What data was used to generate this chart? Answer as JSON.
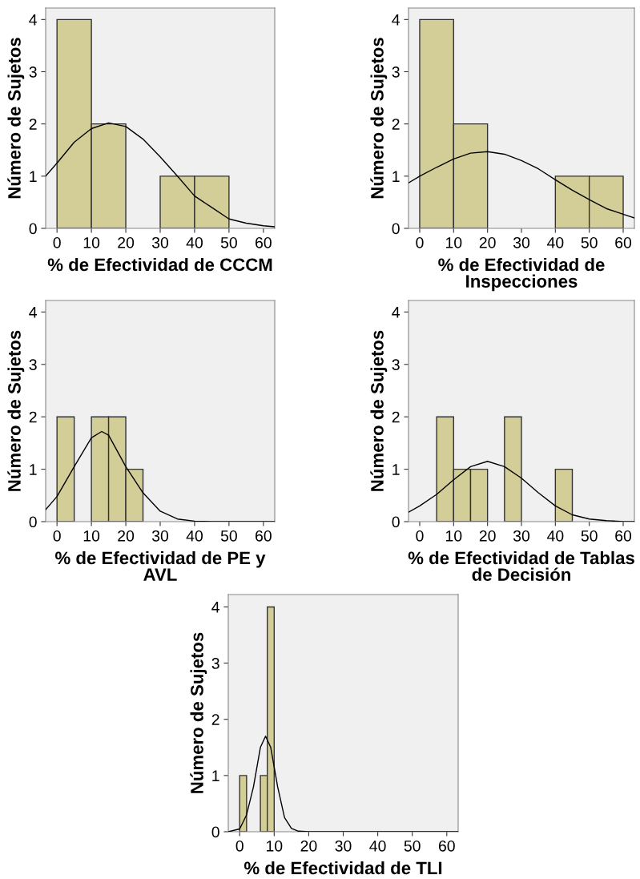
{
  "chart_data": [
    {
      "type": "histogram",
      "xlabel": "% de Efectividad de CCCM",
      "ylabel": "Número de Sujetos",
      "xlim": [
        -3.3,
        63.3
      ],
      "ylim": [
        0,
        4.22
      ],
      "xticks": [
        0,
        10,
        20,
        30,
        40,
        50,
        60
      ],
      "yticks": [
        0,
        1,
        2,
        3,
        4
      ],
      "grid": false,
      "series": [
        {
          "type": "histogram",
          "color": "#d3ce98",
          "bins": [
            0,
            10,
            20,
            30,
            40,
            50
          ],
          "values": [
            4,
            2,
            0,
            1,
            1
          ]
        },
        {
          "type": "line",
          "color": "#000000",
          "x": [
            -3.3,
            0,
            5,
            10,
            15,
            20,
            25,
            30,
            35,
            40,
            45,
            50,
            55,
            60,
            63.3
          ],
          "values": [
            1.0,
            1.25,
            1.65,
            1.91,
            2.02,
            1.95,
            1.71,
            1.37,
            1.0,
            0.62,
            0.4,
            0.18,
            0.1,
            0.05,
            0.03
          ]
        }
      ]
    },
    {
      "type": "histogram",
      "xlabel": "% de Efectividad de\nInspecciones",
      "ylabel": "Número de Sujetos",
      "xlim": [
        -3.3,
        63.3
      ],
      "ylim": [
        0,
        4.22
      ],
      "xticks": [
        0,
        10,
        20,
        30,
        40,
        50,
        60
      ],
      "yticks": [
        0,
        1,
        2,
        3,
        4
      ],
      "grid": false,
      "series": [
        {
          "type": "histogram",
          "color": "#d3ce98",
          "bins": [
            0,
            10,
            20,
            30,
            40,
            50,
            60
          ],
          "values": [
            4,
            2,
            0,
            0,
            1,
            1
          ]
        },
        {
          "type": "line",
          "color": "#000000",
          "x": [
            -3.3,
            0,
            5,
            10,
            15,
            20,
            25,
            30,
            35,
            40,
            45,
            50,
            55,
            60,
            63.3
          ],
          "values": [
            0.87,
            1.0,
            1.17,
            1.33,
            1.44,
            1.47,
            1.42,
            1.3,
            1.14,
            0.93,
            0.73,
            0.55,
            0.38,
            0.27,
            0.2
          ]
        }
      ]
    },
    {
      "type": "histogram",
      "xlabel": "% de Efectividad de PE y\nAVL",
      "ylabel": "Número de Sujetos",
      "xlim": [
        -3.3,
        63.3
      ],
      "ylim": [
        0,
        4.22
      ],
      "xticks": [
        0,
        10,
        20,
        30,
        40,
        50,
        60
      ],
      "yticks": [
        0,
        1,
        2,
        3,
        4
      ],
      "grid": false,
      "series": [
        {
          "type": "histogram",
          "color": "#d3ce98",
          "bins": [
            0,
            5,
            10,
            15,
            20,
            25
          ],
          "values": [
            2,
            0,
            2,
            2,
            1
          ]
        },
        {
          "type": "line",
          "color": "#000000",
          "x": [
            -3.3,
            0,
            5,
            10,
            13,
            15,
            20,
            25,
            30,
            35,
            40,
            45,
            63.3
          ],
          "values": [
            0.23,
            0.48,
            1.05,
            1.6,
            1.72,
            1.65,
            1.05,
            0.55,
            0.2,
            0.05,
            0.01,
            0,
            0
          ]
        }
      ]
    },
    {
      "type": "histogram",
      "xlabel": "% de Efectividad de Tablas\nde Decisión",
      "ylabel": "Número de Sujetos",
      "xlim": [
        -3.3,
        63.3
      ],
      "ylim": [
        0,
        4.22
      ],
      "xticks": [
        0,
        10,
        20,
        30,
        40,
        50,
        60
      ],
      "yticks": [
        0,
        1,
        2,
        3,
        4
      ],
      "grid": false,
      "series": [
        {
          "type": "histogram",
          "color": "#d3ce98",
          "bins": [
            5,
            10,
            15,
            20,
            25,
            30,
            35,
            40,
            45
          ],
          "values": [
            2,
            1,
            1,
            0,
            2,
            0,
            0,
            1
          ]
        },
        {
          "type": "line",
          "color": "#000000",
          "x": [
            -3.3,
            0,
            5,
            10,
            15,
            20,
            25,
            30,
            35,
            40,
            45,
            50,
            55,
            60,
            63.3
          ],
          "values": [
            0.18,
            0.3,
            0.52,
            0.8,
            1.05,
            1.15,
            1.05,
            0.83,
            0.55,
            0.3,
            0.13,
            0.05,
            0.02,
            0,
            0
          ]
        }
      ]
    },
    {
      "type": "histogram",
      "xlabel": "% de Efectividad de TLI",
      "ylabel": "Número de Sujetos",
      "xlim": [
        -3.3,
        63.3
      ],
      "ylim": [
        0,
        4.22
      ],
      "xticks": [
        0,
        10,
        20,
        30,
        40,
        50,
        60
      ],
      "yticks": [
        0,
        1,
        2,
        3,
        4
      ],
      "grid": false,
      "series": [
        {
          "type": "histogram",
          "color": "#d3ce98",
          "bins": [
            0,
            2,
            4,
            6,
            8,
            10
          ],
          "values": [
            1,
            0,
            0,
            1,
            4
          ]
        },
        {
          "type": "line",
          "color": "#000000",
          "x": [
            -3.3,
            0,
            2,
            4,
            6,
            7.5,
            9,
            11,
            13,
            15,
            17,
            20,
            63.3
          ],
          "values": [
            0,
            0.05,
            0.3,
            0.8,
            1.5,
            1.7,
            1.5,
            0.8,
            0.25,
            0.06,
            0.01,
            0,
            0
          ]
        }
      ]
    }
  ]
}
